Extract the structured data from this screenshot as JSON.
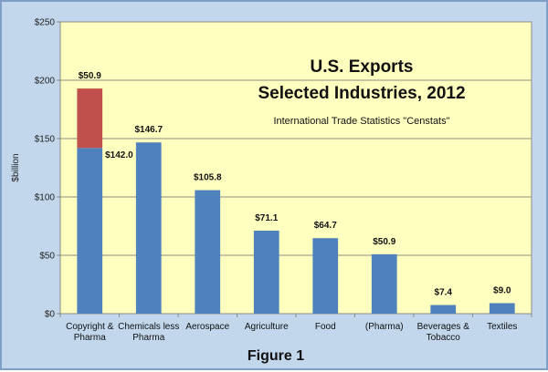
{
  "figure_caption": "Figure 1",
  "chart_data": {
    "type": "bar",
    "stacked": true,
    "title_line1": "U.S. Exports",
    "title_line2": "Selected Industries, 2012",
    "subtitle": "International Trade Statistics \"Censtats\"",
    "ylabel": "$billion",
    "xlabel": "",
    "ylim": [
      0,
      250
    ],
    "yticks": [
      0,
      50,
      100,
      150,
      200,
      250
    ],
    "ytick_labels": [
      "$0",
      "$50",
      "$100",
      "$150",
      "$200",
      "$250"
    ],
    "grid": true,
    "categories": [
      [
        "Copyright &",
        "Pharma"
      ],
      [
        "Chemicals less",
        "Pharma"
      ],
      [
        "Aerospace"
      ],
      [
        "Agriculture"
      ],
      [
        "Food"
      ],
      [
        "(Pharma)"
      ],
      [
        "Beverages &",
        "Tobacco"
      ],
      [
        "Textiles"
      ]
    ],
    "series": [
      {
        "color": "#4f81bd",
        "values": [
          142.0,
          146.7,
          105.8,
          71.1,
          64.7,
          50.9,
          7.4,
          9.0
        ],
        "labels": [
          "$142.0",
          "$146.7",
          "$105.8",
          "$71.1",
          "$64.7",
          "$50.9",
          "$7.4",
          "$9.0"
        ]
      },
      {
        "color": "#c0504d",
        "values": [
          50.9,
          0,
          0,
          0,
          0,
          0,
          0,
          0
        ],
        "labels": [
          "$50.9",
          "",
          "",
          "",
          "",
          "",
          "",
          ""
        ]
      }
    ],
    "plot_background": "#ffffc0"
  }
}
